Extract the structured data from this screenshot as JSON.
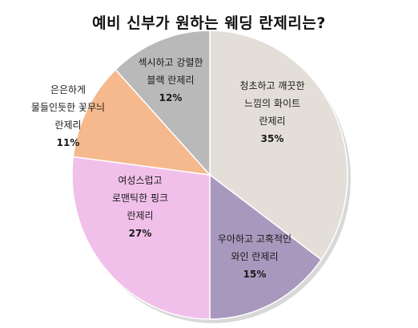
{
  "chart_data": {
    "type": "pie",
    "title": "예비 신부가 원하는 웨딩 란제리는?",
    "slices": [
      {
        "label_lines": [
          "청초하고 깨끗한",
          "느낌의 화이트",
          "란제리"
        ],
        "value": 35,
        "value_label": "35%",
        "color": "#e3dfd8"
      },
      {
        "label_lines": [
          "우아하고 고혹적인",
          "와인 란제리"
        ],
        "value": 15,
        "value_label": "15%",
        "color": "#a898bd"
      },
      {
        "label_lines": [
          "여성스럽고",
          "로맨틱한 핑크",
          "란제리"
        ],
        "value": 27,
        "value_label": "27%",
        "color": "#f1c0ea"
      },
      {
        "label_lines": [
          "은은하게",
          "물들인듯한 꽃무늬",
          "란제리"
        ],
        "value": 11,
        "value_label": "11%",
        "color": "#f5b98d"
      },
      {
        "label_lines": [
          "섹시하고 강렬한",
          "블랙 란제리"
        ],
        "value": 12,
        "value_label": "12%",
        "color": "#b9b9b9"
      }
    ],
    "start_angle_deg": 0,
    "direction": "clockwise",
    "legend": "none"
  }
}
